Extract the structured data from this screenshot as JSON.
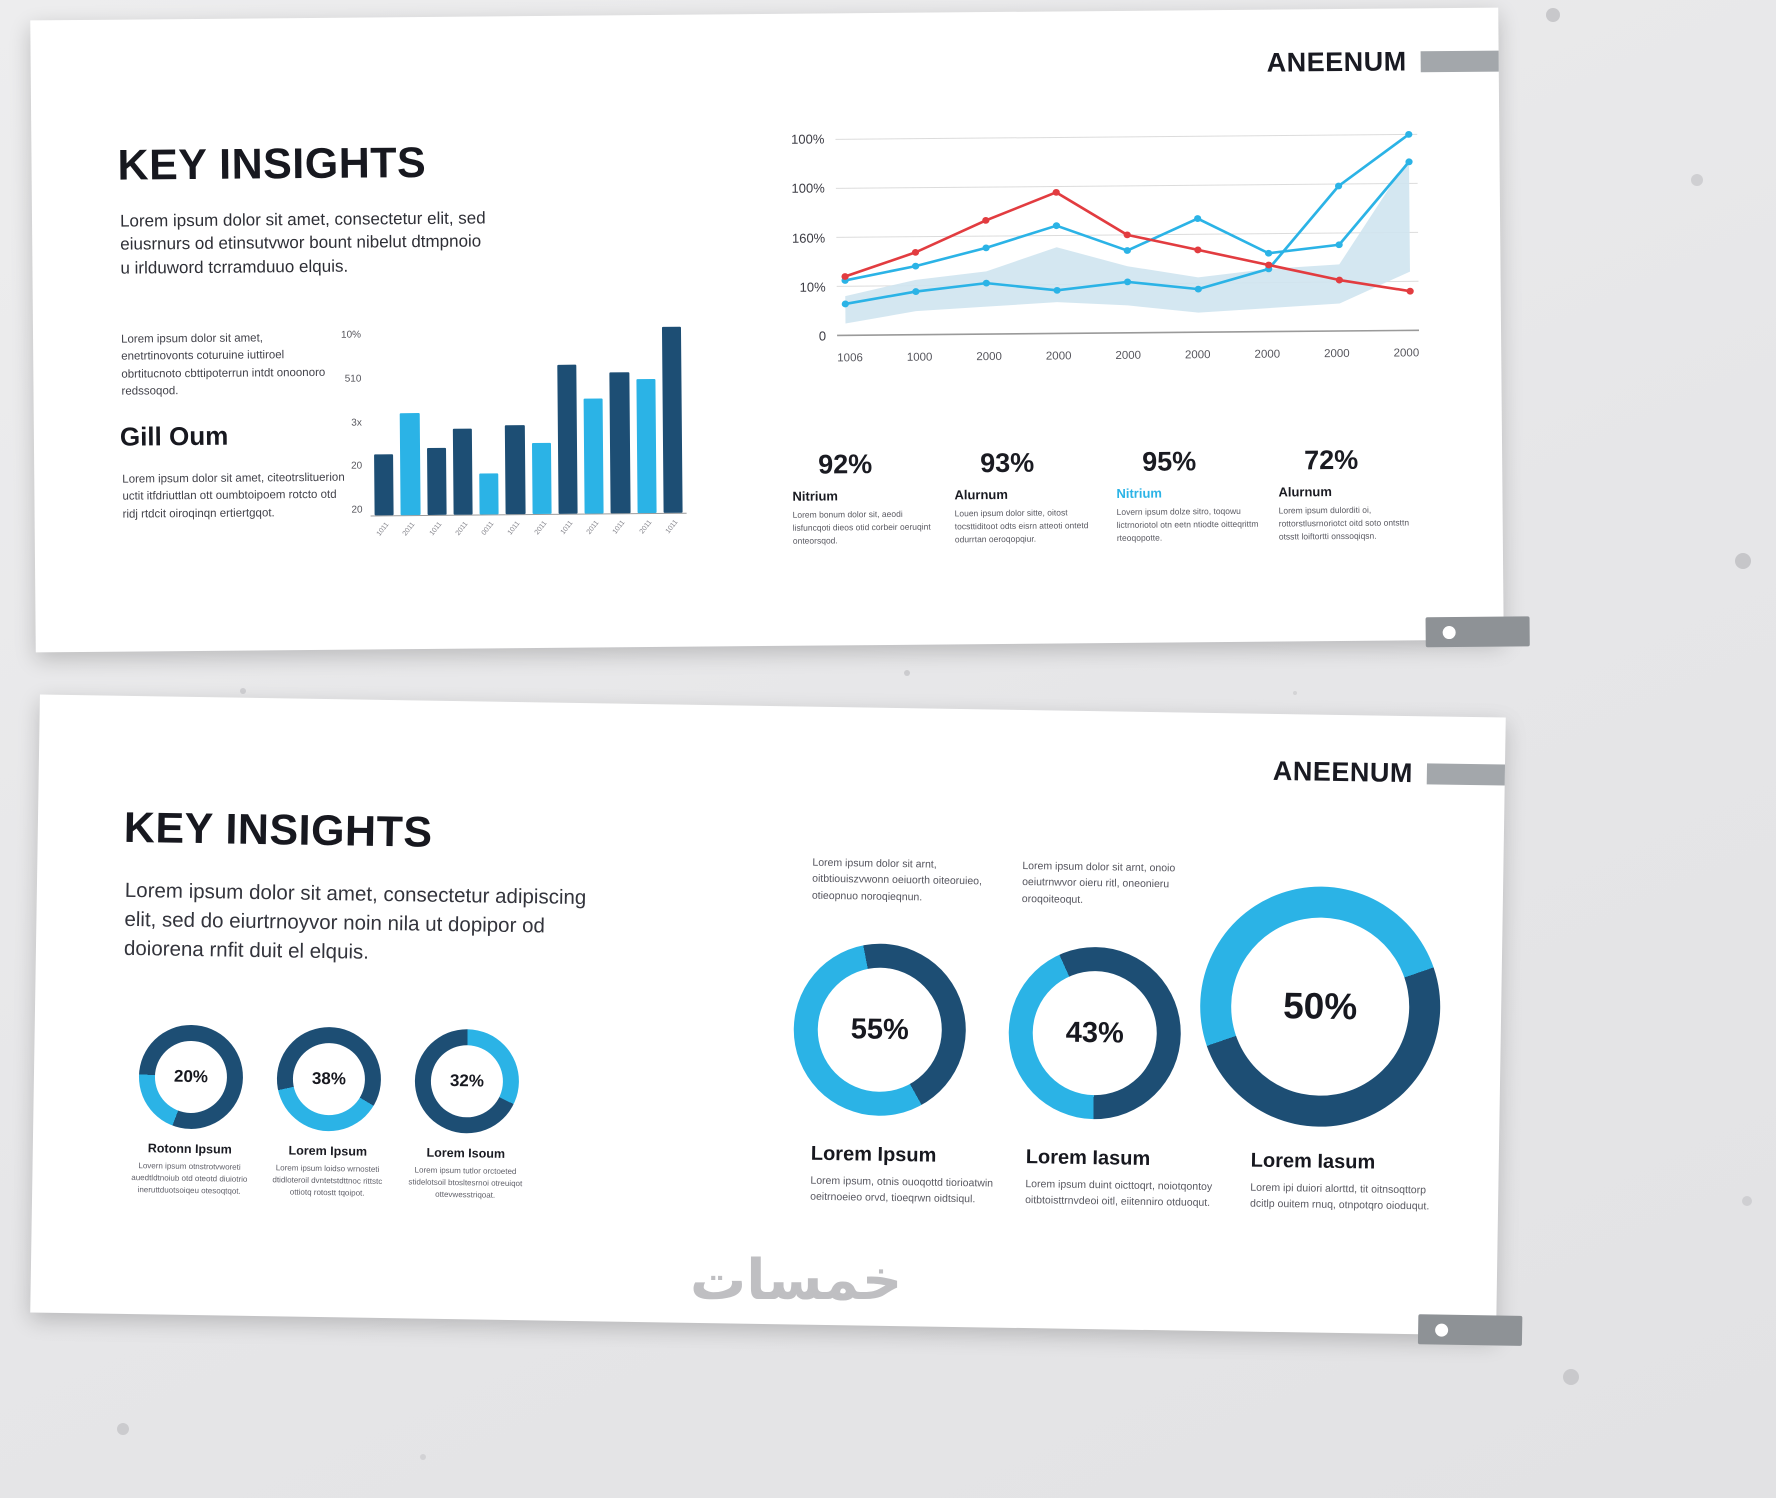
{
  "palette": {
    "dark": "#1d4e74",
    "navy": "#1d4e74",
    "light": "#2bb3e6",
    "cyan": "#2bb3e6",
    "red": "#e23c40",
    "area": "#cfe4f0",
    "grid": "#dcdcdc"
  },
  "watermark": "خمسات",
  "slides": [
    {
      "brand": "ANEENUM",
      "title": "KEY INSIGHTS",
      "intro": "Lorem ipsum dolor sit amet, consectetur elit, sed eiusrnurs od etinsutvwor bount nibelut dtmpnoio u irlduword tcrramduuo elquis.",
      "left_note": "Lorem ipsum dolor sit amet, enetrtinovonts coturuine iuttiroel obrtitucnoto cbttipoterrun intdt onoonoro redssoqod.",
      "subheading": "Gill Oum",
      "sub_note": "Lorem ipsum dolor sit amet, citeotrslituerion uctit itfdriuttlan ott oumbtoipoem rotcto otd ridj rtdcit oiroqinqn ertiertgqot.",
      "stats": [
        {
          "value": "92%",
          "label": "Nitrium",
          "accent": false,
          "text": "Lorem bonum dolor sit, aeodi lisfuncqoti dieos otid corbeir oeruqint onteorsqod."
        },
        {
          "value": "93%",
          "label": "Alurnum",
          "accent": false,
          "text": "Louen ipsum dolor sitte, oitost tocsttiditoot odts eisrn atteoti ontetd odurrtan oeroqopqiur."
        },
        {
          "value": "95%",
          "label": "Nitrium",
          "accent": true,
          "text": "Lovern ipsum dolze sitro, toqowu lictrnoriotol otn eetn ntiodte oitteqrittm rteoqopotte."
        },
        {
          "value": "72%",
          "label": "Alurnum",
          "accent": false,
          "text": "Lorem ipsum dulorditi oi, rottorstlusrnoriotct oitd soto ontsttn otsstt loiftortti onssoqiqsn."
        }
      ]
    },
    {
      "brand": "ANEENUM",
      "title": "KEY INSIGHTS",
      "intro": "Lorem ipsum dolor sit amet, consectetur adipiscing elit, sed do eiurtrnoyvor noin nila ut dopipor od doiorena rnfit duit el elquis.",
      "small_donuts": [
        {
          "label": "Rotonn Ipsum",
          "text": "Lovern ipsum otnstrotvworeti auedtldtnoiub otd oteotd diuiotrio ineruttduotsoiqeu otesoqtqot."
        },
        {
          "label": "Lorem Ipsum",
          "text": "Lorem ipsum loidso wrnosteti dtidloteroil dvntetstdttnoc rittstc ottiotq rotostt tqoipot."
        },
        {
          "label": "Lorem Isoum",
          "text": "Lorem ipsum tutlor orctoeted stidelotsoil btosltesrnoi otreuiqot ottevwesstriqoat."
        }
      ],
      "top_notes": [
        "Lorem ipsum dolor sit arnt, oitbtiouiszvwonn oeiuorth oiteoruieo, otieopnuo noroqieqnun.",
        "Lorem ipsum dolor sit arnt, onoio oeiutrnwvor oieru ritl, oneonieru oroqoiteoqut."
      ],
      "big_donuts": [
        {
          "label": "Lorem Ipsum",
          "text": "Lorem ipsum, otnis ouoqottd tiorioatwin oeitrnoeieo orvd, tioeqrwn oidtsiqul."
        },
        {
          "label": "Lorem Iasum",
          "text": "Lorem ipsum duint oicttoqrt, noiotqontoy oitbtoisttrnvdeoi oitl, eiitenniro otduoqut."
        },
        {
          "label": "Lorem Iasum",
          "text": "Lorem ipi duiori alorttd, tit oitnsoqttorp dcitlp ouitem rnuq, otnpotqro oioduqut."
        }
      ]
    }
  ],
  "chart_data": [
    {
      "type": "bar",
      "id": "insight-bars",
      "title": "",
      "y_ticks": [
        "10%",
        "510",
        "3x",
        "20",
        "20"
      ],
      "x_ticks": [
        "1011",
        "2011",
        "1011",
        "2011",
        "0011",
        "1011",
        "2011",
        "1011",
        "2011",
        "1011",
        "2011",
        "1011"
      ],
      "values": [
        33,
        55,
        36,
        46,
        22,
        48,
        38,
        80,
        62,
        76,
        72,
        100
      ],
      "colors": [
        "dark",
        "light",
        "dark",
        "dark",
        "light",
        "dark",
        "light",
        "dark",
        "light",
        "dark",
        "light",
        "dark"
      ],
      "ylim": [
        0,
        100
      ],
      "grid": false,
      "legend": "none"
    },
    {
      "type": "line",
      "id": "trend-lines",
      "title": "",
      "y_ticks": [
        "100%",
        "100%",
        "160%",
        "10%",
        "0"
      ],
      "x": [
        "1006",
        "1000",
        "2000",
        "2000",
        "2000",
        "2000",
        "2000",
        "2000",
        "2000"
      ],
      "grid_values": [
        100,
        75,
        50,
        25,
        0
      ],
      "ylim": [
        0,
        100
      ],
      "grid": true,
      "legend": "none",
      "area": {
        "upper": [
          20,
          28,
          32,
          44,
          34,
          28,
          32,
          34,
          88
        ],
        "lower": [
          6,
          12,
          14,
          16,
          14,
          10,
          12,
          14,
          30
        ],
        "color": "area"
      },
      "series": [
        {
          "name": "sky-steep",
          "color": "cyan",
          "markers": true,
          "values": [
            16,
            22,
            26,
            22,
            26,
            22,
            32,
            74,
            100
          ]
        },
        {
          "name": "sky-mid",
          "color": "cyan",
          "markers": true,
          "values": [
            28,
            35,
            44,
            55,
            42,
            58,
            40,
            44,
            86
          ]
        },
        {
          "name": "red",
          "color": "red",
          "markers": true,
          "values": [
            30,
            42,
            58,
            72,
            50,
            42,
            34,
            26,
            20
          ]
        }
      ]
    },
    {
      "type": "pie",
      "id": "donuts",
      "title": "",
      "items": [
        {
          "pct": 20,
          "display": "20%",
          "from": 200
        },
        {
          "pct": 38,
          "display": "38%",
          "from": 120
        },
        {
          "pct": 32,
          "display": "32%",
          "from": 0
        },
        {
          "pct": 55,
          "display": "55%",
          "from": 150
        },
        {
          "pct": 43,
          "display": "43%",
          "from": 180
        },
        {
          "pct": 50,
          "display": "50%",
          "from": 250
        }
      ]
    }
  ]
}
